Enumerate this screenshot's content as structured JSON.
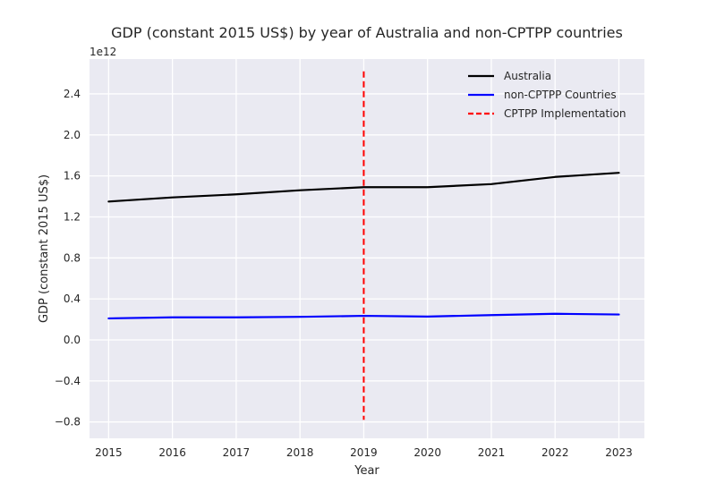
{
  "chart_data": {
    "type": "line",
    "title": "GDP (constant 2015 US$) by year of Australia and non-CPTPP countries",
    "xlabel": "Year",
    "ylabel": "GDP (constant 2015 US$)",
    "y_offset_label": "1e12",
    "x": [
      2015,
      2016,
      2017,
      2018,
      2019,
      2020,
      2021,
      2022,
      2023
    ],
    "x_ticks": [
      "2015",
      "2016",
      "2017",
      "2018",
      "2019",
      "2020",
      "2021",
      "2022",
      "2023"
    ],
    "xlim": [
      2014.7,
      2023.4
    ],
    "y_ticks": [
      -0.8,
      -0.4,
      0.0,
      0.4,
      0.8,
      1.2,
      1.6,
      2.0,
      2.4
    ],
    "y_tick_labels": [
      "−0.8",
      "−0.4",
      "0.0",
      "0.4",
      "0.8",
      "1.2",
      "1.6",
      "2.0",
      "2.4"
    ],
    "ylim": [
      -0.96,
      2.74
    ],
    "y_unit_multiplier": 1000000000000.0,
    "grid": true,
    "background": "#eaeaf2",
    "legend_position": "top-right",
    "series": [
      {
        "name": "Australia",
        "color": "#000000",
        "style": "solid",
        "values": [
          1.35,
          1.39,
          1.42,
          1.46,
          1.49,
          1.49,
          1.52,
          1.59,
          1.63
        ]
      },
      {
        "name": "non-CPTPP Countries",
        "color": "#0000ff",
        "style": "solid",
        "values": [
          0.21,
          0.22,
          0.22,
          0.225,
          0.235,
          0.228,
          0.242,
          0.255,
          0.248
        ]
      }
    ],
    "vlines": [
      {
        "name": "CPTPP Implementation",
        "color": "#ff0000",
        "style": "dashed",
        "x": 2019,
        "y_range": [
          -0.78,
          2.62
        ]
      }
    ]
  }
}
